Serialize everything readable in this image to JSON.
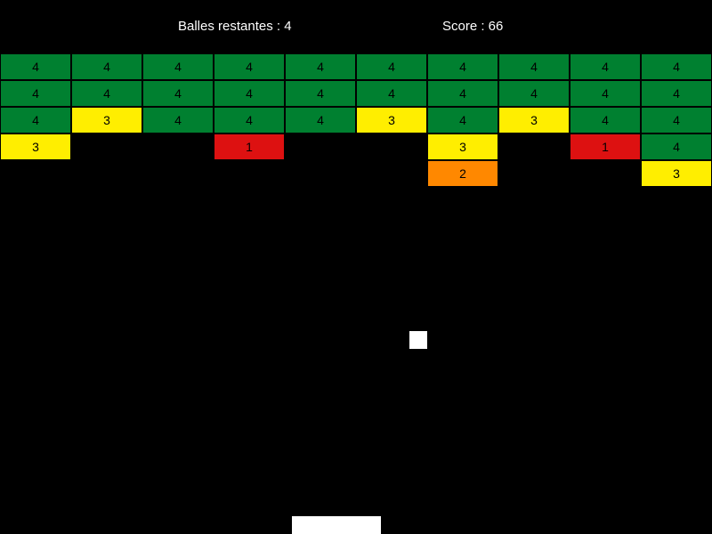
{
  "hud": {
    "balls_label": "Balles restantes : 4",
    "score_label": "Score : 66"
  },
  "colors": {
    "background": "#000000",
    "hits_4": "#008030",
    "hits_3": "#ffee00",
    "hits_2": "#ff8800",
    "hits_1": "#dd1111",
    "ball": "#ffffff",
    "paddle": "#ffffff"
  },
  "grid": {
    "columns": 10,
    "rows": [
      [
        4,
        4,
        4,
        4,
        4,
        4,
        4,
        4,
        4,
        4
      ],
      [
        4,
        4,
        4,
        4,
        4,
        4,
        4,
        4,
        4,
        4
      ],
      [
        4,
        3,
        4,
        4,
        4,
        3,
        4,
        3,
        4,
        4
      ],
      [
        3,
        null,
        null,
        1,
        null,
        null,
        3,
        null,
        1,
        4
      ],
      [
        null,
        null,
        null,
        null,
        null,
        null,
        2,
        null,
        null,
        3
      ]
    ]
  }
}
